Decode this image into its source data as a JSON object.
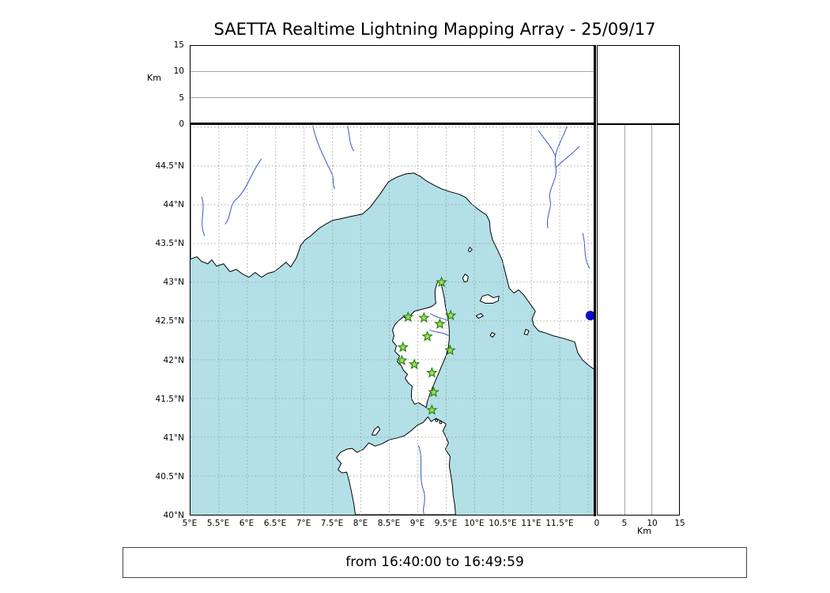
{
  "title": "SAETTA Realtime Lightning Mapping Array - 25/09/17",
  "footer": {
    "text": "from 16:40:00 to 16:49:59"
  },
  "alt_panel": {
    "label": "Km",
    "ticks": [
      {
        "label": "15",
        "km": 15
      },
      {
        "label": "10",
        "km": 10
      },
      {
        "label": "5",
        "km": 5
      },
      {
        "label": "0",
        "km": 0
      }
    ]
  },
  "right_panel": {
    "label": "Km",
    "ticks": [
      {
        "label": "0",
        "km": 0
      },
      {
        "label": "5",
        "km": 5
      },
      {
        "label": "10",
        "km": 10
      },
      {
        "label": "15",
        "km": 15
      }
    ]
  },
  "alt_gridlines": [
    5,
    10
  ],
  "map": {
    "lat_ticks": [
      {
        "label": "44.5°N",
        "value": 44.5
      },
      {
        "label": "44°N",
        "value": 44
      },
      {
        "label": "43.5°N",
        "value": 43.5
      },
      {
        "label": "43°N",
        "value": 43
      },
      {
        "label": "42.5°N",
        "value": 42.5
      },
      {
        "label": "42°N",
        "value": 42
      },
      {
        "label": "41.5°N",
        "value": 41.5
      },
      {
        "label": "41°N",
        "value": 41
      },
      {
        "label": "40.5°N",
        "value": 40.5
      },
      {
        "label": "40°N",
        "value": 40
      }
    ],
    "lon_ticks": [
      {
        "label": "5°E",
        "value": 5
      },
      {
        "label": "5.5°E",
        "value": 5.5
      },
      {
        "label": "6°E",
        "value": 6
      },
      {
        "label": "6.5°E",
        "value": 6.5
      },
      {
        "label": "7°E",
        "value": 7
      },
      {
        "label": "7.5°E",
        "value": 7.5
      },
      {
        "label": "8°E",
        "value": 8
      },
      {
        "label": "8.5°E",
        "value": 8.5
      },
      {
        "label": "9°E",
        "value": 9
      },
      {
        "label": "9.5°E",
        "value": 9.5
      },
      {
        "label": "10°E",
        "value": 10
      },
      {
        "label": "10.5°E",
        "value": 10.5
      },
      {
        "label": "11°E",
        "value": 11
      },
      {
        "label": "11.5°E",
        "value": 11.5
      }
    ],
    "lon_gridlines": [
      5.5,
      6,
      6.5,
      7,
      7.5,
      8,
      8.5,
      9,
      9.5,
      10,
      10.5,
      11,
      11.5,
      12
    ],
    "lat_gridlines": [
      40.5,
      41,
      41.5,
      42,
      42.5,
      43,
      43.5,
      44,
      44.5,
      45
    ],
    "colors": {
      "sea": "#B2E0E6",
      "land": "#FFFFFF",
      "coast": "#000000",
      "river": "#3A55C8",
      "grid": "#9C9C9C",
      "station_fill": "#9BE24B",
      "station_edge": "#2F7F1E",
      "edge_marker": "#0808C8"
    },
    "stations": [
      {
        "lon": 9.42,
        "lat": 43.0
      },
      {
        "lon": 8.83,
        "lat": 42.55
      },
      {
        "lon": 9.11,
        "lat": 42.54
      },
      {
        "lon": 9.39,
        "lat": 42.46
      },
      {
        "lon": 9.58,
        "lat": 42.57
      },
      {
        "lon": 9.17,
        "lat": 42.3
      },
      {
        "lon": 8.74,
        "lat": 42.16
      },
      {
        "lon": 9.57,
        "lat": 42.12
      },
      {
        "lon": 8.72,
        "lat": 41.99
      },
      {
        "lon": 8.94,
        "lat": 41.94
      },
      {
        "lon": 9.25,
        "lat": 41.83
      },
      {
        "lon": 9.28,
        "lat": 41.58
      },
      {
        "lon": 9.25,
        "lat": 41.35
      }
    ],
    "edge_marker": {
      "lon": 12.04,
      "lat": 42.57
    }
  }
}
